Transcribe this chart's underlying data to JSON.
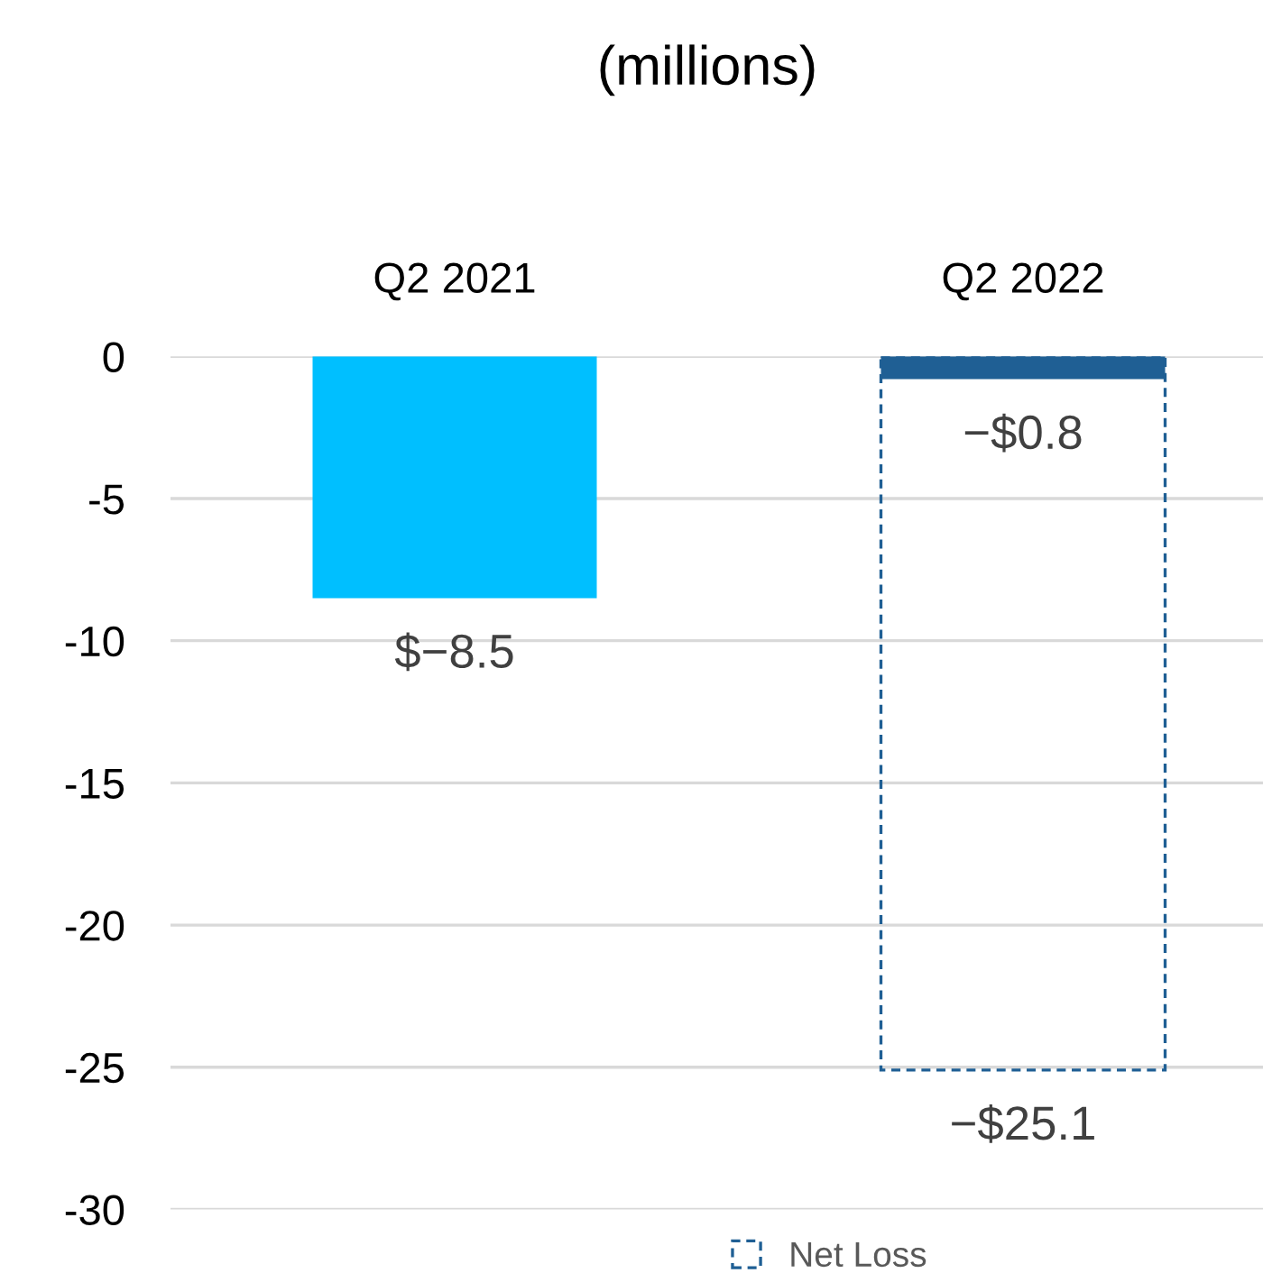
{
  "chart_data": {
    "type": "bar",
    "title": "(millions)",
    "categories": [
      "Q2 2021",
      "Q2 2022"
    ],
    "series": [
      {
        "colors": [
          "#00bfff",
          "#1f5f94"
        ],
        "values": [
          -8.5,
          -0.8
        ],
        "value_labels": [
          "$−8.5",
          "−$0.8"
        ]
      },
      {
        "name": "Net Loss",
        "color": "#1f5f94",
        "values": [
          null,
          -25.1
        ],
        "value_labels": [
          null,
          "−$25.1"
        ],
        "line_style": "dashed"
      }
    ],
    "ylim": [
      -30,
      0
    ],
    "yticks": [
      0,
      -5,
      -10,
      -15,
      -20,
      -25,
      -30
    ],
    "grid": "y",
    "legend": "bottom"
  }
}
